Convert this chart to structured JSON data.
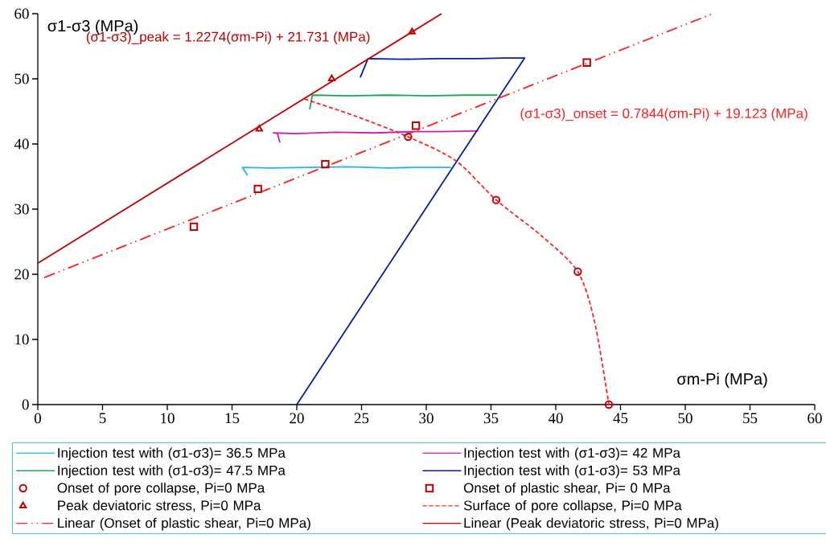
{
  "chart_data": {
    "type": "line",
    "xlabel": "σm-Pi (MPa)",
    "ylabel": "σ1-σ3 (MPa)",
    "xlim": [
      0,
      60
    ],
    "ylim": [
      0,
      60
    ],
    "xticks": [
      0,
      5,
      10,
      15,
      20,
      25,
      30,
      35,
      40,
      45,
      50,
      55,
      60
    ],
    "yticks": [
      0,
      10,
      20,
      30,
      40,
      50,
      60
    ],
    "grid": false,
    "legend": "bottom",
    "annotations": [
      "(σ1-σ3)_peak  = 1.2274(σm-Pi)  + 21.731 (MPa)",
      "(σ1-σ3)_onset = 0.7844(σm-Pi) + 19.123 (MPa)"
    ],
    "series": [
      {
        "name": "Injection test with (σ1-σ3)= 36.5 MPa",
        "color": "#1fb4f0",
        "marker": "none",
        "x": [
          16.2,
          15.8,
          18,
          21,
          24,
          27,
          29,
          31.9
        ],
        "values": [
          35.2,
          36.4,
          36.3,
          36.4,
          36.5,
          36.3,
          36.4,
          36.4
        ]
      },
      {
        "name": "Injection test with (σ1-σ3)= 42 MPa",
        "color": "#c81eb4",
        "marker": "none",
        "x": [
          18.7,
          18.5,
          18.2,
          20,
          23,
          26,
          29,
          31,
          34.0
        ],
        "values": [
          40.2,
          41.6,
          41.7,
          41.6,
          41.8,
          41.7,
          41.9,
          41.9,
          42.0
        ]
      },
      {
        "name": "Injection test with (σ1-σ3)= 47.5 MPa",
        "color": "#1aaa50",
        "marker": "none",
        "x": [
          21.0,
          21.2,
          24,
          27,
          30,
          33,
          35.5
        ],
        "values": [
          45.3,
          47.5,
          47.4,
          47.5,
          47.4,
          47.5,
          47.5
        ]
      },
      {
        "name": "Injection test with (σ1-σ3)= 53 MPa",
        "color": "#00209f",
        "marker": "none",
        "x": [
          24.9,
          25.5,
          28,
          31,
          34,
          36,
          37.6,
          20.0
        ],
        "values": [
          50.2,
          53.1,
          53.0,
          53.1,
          53.1,
          53.2,
          53.2,
          0
        ]
      },
      {
        "name": "Onset of pore collapse, Pi=0 MPa",
        "color": "#c00000",
        "type": "scatter",
        "marker": "circle",
        "x": [
          28.6,
          35.4,
          41.7,
          44.1
        ],
        "values": [
          41.1,
          31.4,
          20.4,
          0
        ]
      },
      {
        "name": "Onset of plastic shear, Pi= 0 MPa",
        "color": "#c00000",
        "type": "scatter",
        "marker": "square",
        "x": [
          12.05,
          17.0,
          22.2,
          29.2,
          42.4
        ],
        "values": [
          27.3,
          33.1,
          36.9,
          42.8,
          52.5
        ]
      },
      {
        "name": "Peak deviatoric stress, Pi=0 MPa",
        "color": "#c00000",
        "type": "scatter",
        "marker": "triangle",
        "x": [
          17.1,
          22.7,
          28.9
        ],
        "values": [
          42.3,
          50.0,
          57.2
        ]
      },
      {
        "name": "Surface of pore collapse, Pi=0 MPa",
        "color": "#ff2020",
        "type": "line",
        "marker": "none",
        "line_style": "dashed",
        "x": [
          20.6,
          24.5,
          28.6,
          32.3,
          35.4,
          38.9,
          41.7,
          43.0,
          44.1
        ],
        "values": [
          46.9,
          44.3,
          41.1,
          37.4,
          31.4,
          25.9,
          20.4,
          12.7,
          0
        ]
      },
      {
        "name": "Linear (Onset of plastic shear, Pi=0 MPa)",
        "color": "#ff2020",
        "type": "line",
        "marker": "none",
        "line_style": "dashdotdot",
        "x": [
          0.5,
          52.0
        ],
        "values": [
          19.5,
          59.9
        ]
      },
      {
        "name": "Linear (Peak deviatoric stress, Pi=0 MPa)",
        "color": "#c00000",
        "type": "line",
        "marker": "none",
        "line_style": "solid",
        "x": [
          0,
          31.18
        ],
        "values": [
          21.7,
          60
        ]
      }
    ]
  }
}
